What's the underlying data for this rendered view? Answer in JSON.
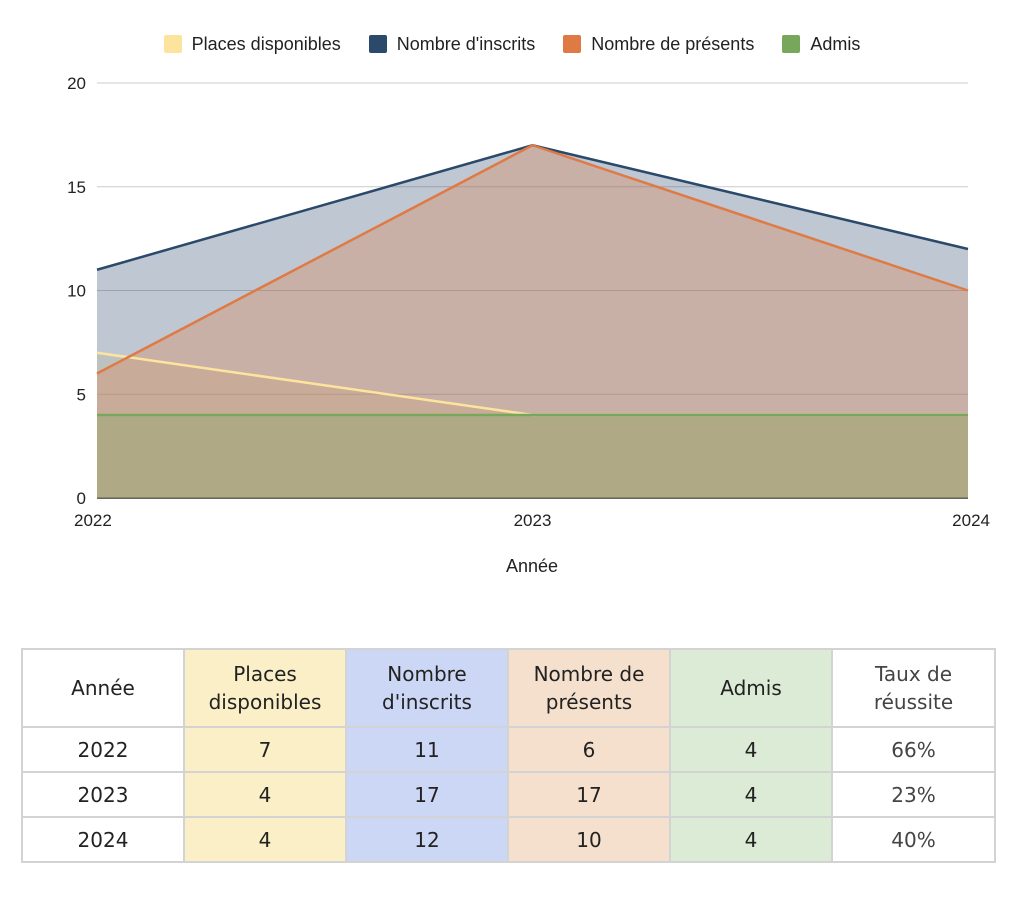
{
  "chart_data": {
    "type": "area",
    "x": [
      "2022",
      "2023",
      "2024"
    ],
    "xlabel": "Année",
    "ylabel": "",
    "ylim": [
      0,
      20
    ],
    "yticks": [
      "0",
      "5",
      "10",
      "15",
      "20"
    ],
    "grid": true,
    "legend_position": "top",
    "series": [
      {
        "name": "Places disponibles",
        "values": [
          7,
          4,
          4
        ],
        "color": "#fde49e"
      },
      {
        "name": "Nombre d'inscrits",
        "values": [
          11,
          17,
          12
        ],
        "color": "#2b4a6b"
      },
      {
        "name": "Nombre de présents",
        "values": [
          6,
          17,
          10
        ],
        "color": "#e07a45"
      },
      {
        "name": "Admis",
        "values": [
          4,
          4,
          4
        ],
        "color": "#76a75a"
      }
    ]
  },
  "table": {
    "headers": [
      "Année",
      "Places disponibles",
      "Nombre d'inscrits",
      "Nombre de présents",
      "Admis",
      "Taux de réussite"
    ],
    "rows": [
      [
        "2022",
        "7",
        "11",
        "6",
        "4",
        "66%"
      ],
      [
        "2023",
        "4",
        "17",
        "17",
        "4",
        "23%"
      ],
      [
        "2024",
        "4",
        "12",
        "10",
        "4",
        "40%"
      ]
    ]
  }
}
